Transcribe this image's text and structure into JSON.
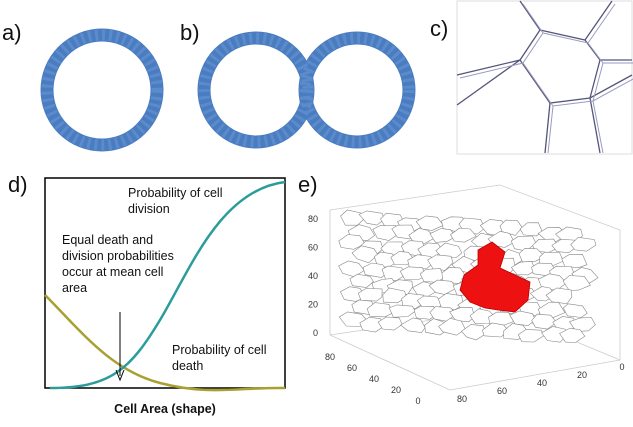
{
  "panels": {
    "a": {
      "label": "a)"
    },
    "b": {
      "label": "b)"
    },
    "c": {
      "label": "c)"
    },
    "d": {
      "label": "d)",
      "division_label": [
        "Probability of cell",
        "division"
      ],
      "equal_label": [
        "Equal death and",
        "division probabilities",
        "occur at mean cell",
        "area"
      ],
      "death_label": [
        "Probability of cell",
        "death"
      ],
      "x_axis_label": "Cell Area (shape)"
    },
    "e": {
      "label": "e)",
      "z_ticks": [
        80,
        60,
        40,
        20,
        0
      ],
      "left_ticks": [
        80,
        60,
        40,
        20,
        0
      ],
      "right_ticks": [
        80,
        60,
        40,
        20,
        0
      ]
    }
  }
}
